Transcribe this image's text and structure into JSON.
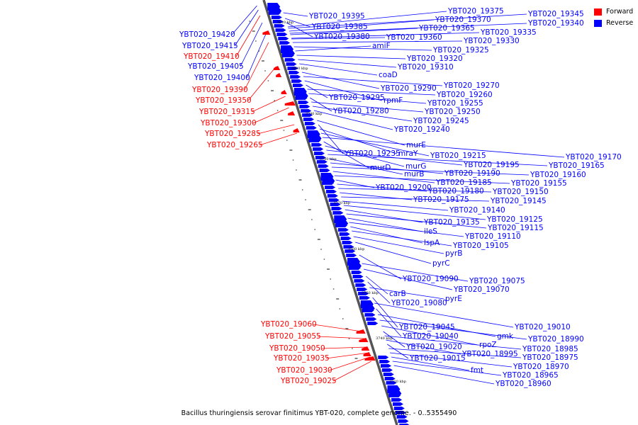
{
  "legend": [
    {
      "label": "Forward",
      "color": "#ff0000"
    },
    {
      "label": "Reverse",
      "color": "#0000ff"
    }
  ],
  "caption": "Bacillus thuringiensis serovar finitimus YBT-020, complete genome. - 0..5355490",
  "ticks": [
    "3810 kbp",
    "3800 kbp",
    "3790 kbp",
    "3780 kbp",
    "3770 kbp",
    "3760 kbp",
    "3750 kbp",
    "3740 kbp",
    "3730 kbp"
  ],
  "reverse_labels": [
    "YBT020_19395",
    "YBT020_19385",
    "YBT020_19380",
    "YBT020_19375",
    "YBT020_19370",
    "YBT020_19365",
    "YBT020_19360",
    "YBT020_19345",
    "YBT020_19340",
    "YBT020_19335",
    "YBT020_19330",
    "YBT020_19325",
    "amiF",
    "YBT020_19320",
    "YBT020_19310",
    "coaD",
    "YBT020_19290",
    "YBT020_19270",
    "rpmF",
    "YBT020_19295",
    "YBT020_19260",
    "YBT020_19255",
    "YBT020_19280",
    "YBT020_19250",
    "YBT020_19245",
    "YBT020_19240",
    "murE",
    "YBT020_19235",
    "mraY",
    "YBT020_19215",
    "YBT020_19170",
    "murD",
    "murG",
    "YBT020_19195",
    "YBT020_19165",
    "murB",
    "YBT020_19190",
    "YBT020_19160",
    "YBT020_19185",
    "YBT020_19155",
    "YBT020_19200",
    "YBT020_19180",
    "YBT020_19150",
    "YBT020_19175",
    "YBT020_19145",
    "YBT020_19140",
    "YBT020_19125",
    "YBT020_19135",
    "YBT020_19115",
    "ileS",
    "YBT020_19110",
    "lspA",
    "YBT020_19105",
    "pyrB",
    "pyrC",
    "YBT020_19090",
    "YBT020_19075",
    "YBT020_19070",
    "carB",
    "YBT020_19080",
    "pyrE",
    "YBT020_19045",
    "YBT020_19010",
    "YBT020_19040",
    "gmk",
    "YBT020_18990",
    "rpoZ",
    "YBT020_19020",
    "YBT020_18985",
    "YBT020_18995",
    "YBT020_19015",
    "YBT020_18975",
    "YBT020_18970",
    "fmt",
    "YBT020_18965",
    "YBT020_18960"
  ],
  "forward_upper": [
    "YBT020_19420",
    "YBT020_19415",
    "YBT020_19410",
    "YBT020_19405",
    "YBT020_19400",
    "YBT020_19390",
    "YBT020_19350",
    "YBT020_19315",
    "YBT020_19300",
    "YBT020_19285",
    "YBT020_19265"
  ],
  "forward_lower": [
    "YBT020_19060",
    "YBT020_19055",
    "YBT020_19050",
    "YBT020_19035",
    "YBT020_19030",
    "YBT020_19025"
  ]
}
